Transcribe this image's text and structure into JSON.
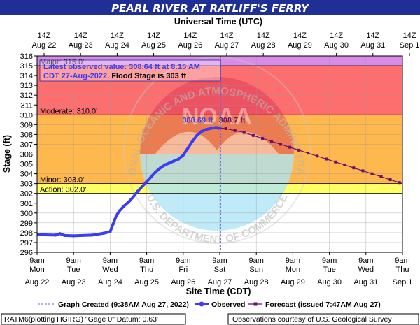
{
  "title": "PEARL RIVER AT RATLIFF'S FERRY",
  "colors": {
    "title_bg": "#1f2f96",
    "plot_bg": "#ffffff",
    "major_flood": "#d98ce6",
    "moderate_flood": "#ff6e6e",
    "minor_flood": "#ffb84d",
    "action": "#ffff66",
    "observed": "#3d3df0",
    "forecast": "#6b0f6b",
    "logo_red": "#d62a52",
    "logo_blue": "#aee6f7",
    "logo_gray": "#c8c8c8"
  },
  "chart_data": {
    "type": "line",
    "title": "PEARL RIVER AT RATLIFF'S FERRY",
    "xlabel": "Site Time (CDT)",
    "ylabel": "Stage (ft)",
    "top_axis_title": "Universal Time (UTC)",
    "xlim": [
      "2022-08-22T09:00",
      "2022-09-01T09:00"
    ],
    "ylim": [
      296,
      316
    ],
    "yticks": [
      296,
      297,
      298,
      299,
      300,
      301,
      302,
      303,
      304,
      305,
      306,
      307,
      308,
      309,
      310,
      311,
      312,
      313,
      314,
      315,
      316
    ],
    "grid": true,
    "bottom_ticks": [
      {
        "time": "9am",
        "day": "Mon",
        "date": "Aug 22"
      },
      {
        "time": "9am",
        "day": "Tue",
        "date": "Aug 23"
      },
      {
        "time": "9am",
        "day": "Wed",
        "date": "Aug 24"
      },
      {
        "time": "9am",
        "day": "Thu",
        "date": "Aug 25"
      },
      {
        "time": "9am",
        "day": "Fri",
        "date": "Aug 26"
      },
      {
        "time": "9am",
        "day": "Sat",
        "date": "Aug 27"
      },
      {
        "time": "9am",
        "day": "Sun",
        "date": "Aug 28"
      },
      {
        "time": "9am",
        "day": "Mon",
        "date": "Aug 29"
      },
      {
        "time": "9am",
        "day": "Tue",
        "date": "Aug 30"
      },
      {
        "time": "9am",
        "day": "Wed",
        "date": "Aug 31"
      },
      {
        "time": "9am",
        "day": "Thu",
        "date": "Sep 1"
      }
    ],
    "top_ticks": [
      {
        "time": "14Z",
        "date": "Aug 22"
      },
      {
        "time": "14Z",
        "date": "Aug 23"
      },
      {
        "time": "14Z",
        "date": "Aug 24"
      },
      {
        "time": "14Z",
        "date": "Aug 25"
      },
      {
        "time": "14Z",
        "date": "Aug 26"
      },
      {
        "time": "14Z",
        "date": "Aug 27"
      },
      {
        "time": "14Z",
        "date": "Aug 28"
      },
      {
        "time": "14Z",
        "date": "Aug 29"
      },
      {
        "time": "14Z",
        "date": "Aug 30"
      },
      {
        "time": "14Z",
        "date": "Aug 31"
      },
      {
        "time": "14Z",
        "date": "Sep 1"
      }
    ],
    "flood_categories": [
      {
        "name": "Major",
        "label": "Major:  315.0'",
        "from": 315,
        "to": 316,
        "color": "#d98ce6"
      },
      {
        "name": "Moderate",
        "label": "Moderate:  310.0'",
        "from": 310,
        "to": 315,
        "color": "#ff6e6e"
      },
      {
        "name": "Minor",
        "label": "Minor:  303.0'",
        "from": 303,
        "to": 310,
        "color": "#ffb84d"
      },
      {
        "name": "Action",
        "label": "Action:  302.0'",
        "from": 302,
        "to": 303,
        "color": "#ffff66"
      }
    ],
    "annotation": {
      "line1": "Latest observed value: 308.64 ft at 8:15 AM",
      "line2_prefix": "CDT 27-Aug-2022.",
      "line2_bold": " Flood Stage is 303 ft"
    },
    "observed_peak_label": "308.69 ft",
    "forecast_peak_label": "308.7 ft",
    "graph_created_time": "2022-08-27T09:38",
    "series": [
      {
        "name": "Observed",
        "points": [
          [
            "2022-08-22T09:00",
            297.8
          ],
          [
            "2022-08-22T21:00",
            297.75
          ],
          [
            "2022-08-23T00:00",
            297.9
          ],
          [
            "2022-08-23T03:00",
            297.72
          ],
          [
            "2022-08-23T09:00",
            297.68
          ],
          [
            "2022-08-23T21:00",
            297.75
          ],
          [
            "2022-08-24T05:00",
            297.95
          ],
          [
            "2022-08-24T09:00",
            298.1
          ],
          [
            "2022-08-24T11:00",
            298.9
          ],
          [
            "2022-08-24T13:00",
            299.7
          ],
          [
            "2022-08-24T15:00",
            300.2
          ],
          [
            "2022-08-24T18:00",
            300.7
          ],
          [
            "2022-08-24T21:00",
            301.1
          ],
          [
            "2022-08-25T00:00",
            301.6
          ],
          [
            "2022-08-25T03:00",
            302.2
          ],
          [
            "2022-08-25T06:00",
            302.7
          ],
          [
            "2022-08-25T09:00",
            303.2
          ],
          [
            "2022-08-25T12:00",
            303.7
          ],
          [
            "2022-08-25T15:00",
            304.2
          ],
          [
            "2022-08-25T18:00",
            304.6
          ],
          [
            "2022-08-25T21:00",
            304.9
          ],
          [
            "2022-08-26T00:00",
            305.1
          ],
          [
            "2022-08-26T03:00",
            305.3
          ],
          [
            "2022-08-26T06:00",
            305.5
          ],
          [
            "2022-08-26T09:00",
            305.9
          ],
          [
            "2022-08-26T12:00",
            306.6
          ],
          [
            "2022-08-26T15:00",
            307.3
          ],
          [
            "2022-08-26T18:00",
            307.9
          ],
          [
            "2022-08-26T21:00",
            308.3
          ],
          [
            "2022-08-27T00:00",
            308.5
          ],
          [
            "2022-08-27T03:00",
            308.62
          ],
          [
            "2022-08-27T06:00",
            308.69
          ],
          [
            "2022-08-27T08:15",
            308.64
          ]
        ]
      },
      {
        "name": "Forecast",
        "points": [
          [
            "2022-08-27T07:00",
            308.7
          ],
          [
            "2022-08-27T13:00",
            308.6
          ],
          [
            "2022-08-27T19:00",
            308.4
          ],
          [
            "2022-08-28T01:00",
            308.2
          ],
          [
            "2022-08-28T07:00",
            307.9
          ],
          [
            "2022-08-28T13:00",
            307.6
          ],
          [
            "2022-08-28T19:00",
            307.3
          ],
          [
            "2022-08-29T01:00",
            307.0
          ],
          [
            "2022-08-29T07:00",
            306.7
          ],
          [
            "2022-08-29T13:00",
            306.4
          ],
          [
            "2022-08-29T19:00",
            306.1
          ],
          [
            "2022-08-30T01:00",
            305.8
          ],
          [
            "2022-08-30T07:00",
            305.5
          ],
          [
            "2022-08-30T13:00",
            305.2
          ],
          [
            "2022-08-30T19:00",
            304.9
          ],
          [
            "2022-08-31T01:00",
            304.6
          ],
          [
            "2022-08-31T07:00",
            304.3
          ],
          [
            "2022-08-31T13:00",
            304.0
          ],
          [
            "2022-08-31T19:00",
            303.7
          ],
          [
            "2022-09-01T01:00",
            303.4
          ],
          [
            "2022-09-01T07:00",
            303.1
          ],
          [
            "2022-09-01T13:00",
            302.8
          ],
          [
            "2022-09-01T19:00",
            302.5
          ],
          [
            "2022-09-02T01:00",
            302.2
          ],
          [
            "2022-09-02T07:00",
            301.9
          ],
          [
            "2022-09-02T13:00",
            301.5
          ],
          [
            "2022-09-02T19:00",
            301.2
          ],
          [
            "2022-09-03T01:00",
            300.9
          ],
          [
            "2022-09-03T07:00",
            300.5
          ],
          [
            "2022-09-03T13:00",
            300.2
          ],
          [
            "2022-09-03T19:00",
            299.9
          ],
          [
            "2022-09-04T01:00",
            299.6
          ],
          [
            "2022-09-04T07:00",
            299.3
          ],
          [
            "2022-09-04T13:00",
            299.0
          ],
          [
            "2022-09-04T19:00",
            298.7
          ],
          [
            "2022-09-05T01:00",
            298.4
          ],
          [
            "2022-09-05T07:00",
            298.1
          ],
          [
            "2022-09-05T13:00",
            297.8
          ],
          [
            "2022-09-05T19:00",
            297.5
          ],
          [
            "2022-09-06T01:00",
            297.2
          ]
        ]
      }
    ],
    "legend": {
      "graph_created": "Graph Created (9:38AM Aug 27, 2022)",
      "observed": "Observed",
      "forecast": "Forecast (issued 7:47AM Aug 27)"
    }
  },
  "footer": {
    "left": "RATM6(plotting HGIRG) \"Gage 0\" Datum:  0.63'",
    "right": "Observations courtesy of U.S. Geological Survey"
  },
  "logo": {
    "arc_text": "NATIONAL OCEANIC AND ATMOSPHERIC ADMINISTRATION",
    "bottom_text": "U.S. DEPARTMENT OF COMMERCE",
    "mark": "NOAA"
  }
}
